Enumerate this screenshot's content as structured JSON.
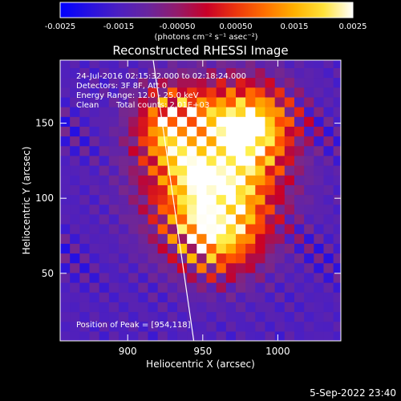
{
  "chart_data": {
    "type": "heatmap",
    "title": "Reconstructed RHESSI Image",
    "xlabel": "Heliocentric X (arcsec)",
    "ylabel": "Heliocentric Y (arcsec)",
    "xlim": [
      855,
      1042
    ],
    "ylim": [
      5,
      192
    ],
    "x_ticks": [
      900,
      950,
      1000
    ],
    "y_ticks": [
      50,
      100,
      150
    ],
    "colorbar": {
      "label": "(photons cm⁻² s⁻¹ asec⁻²)",
      "range": [
        -0.0025,
        0.0025
      ],
      "ticks": [
        "-0.0025",
        "-0.0015",
        "-0.00050",
        "0.00050",
        "0.0015",
        "0.0025"
      ],
      "colormap": "blue-purple-red-orange-yellow-white"
    },
    "annotations": [
      "24-Jul-2016 02:15:32.000 to 02:18:24.000",
      "Detectors: 3F 8F, Att 0",
      "Energy Range: 12.0 - 25.0 keV",
      "Clean",
      "Total counts: 2.01E+03"
    ],
    "peak_label": "Position of Peak = [954,118]",
    "peak": [
      954,
      118
    ],
    "limb_line": [
      [
        917,
        192
      ],
      [
        944,
        5
      ]
    ],
    "blobs": [
      {
        "x": 957,
        "y": 118,
        "sx": 28,
        "sy": 32,
        "a": 1.0
      },
      {
        "x": 985,
        "y": 150,
        "sx": 18,
        "sy": 18,
        "a": 0.6
      },
      {
        "x": 930,
        "y": 150,
        "sx": 16,
        "sy": 16,
        "a": 0.5
      },
      {
        "x": 960,
        "y": 75,
        "sx": 20,
        "sy": 18,
        "a": 0.5
      }
    ]
  },
  "footer": {
    "timestamp": "5-Sep-2022 23:40"
  }
}
